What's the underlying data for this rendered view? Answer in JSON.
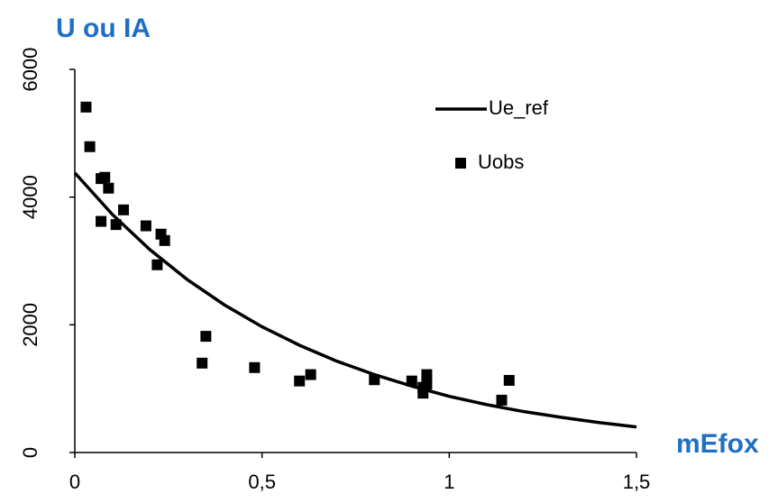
{
  "chart_data": {
    "type": "scatter",
    "title": "U ou IA",
    "x_label": "mEfox",
    "xlim": [
      0,
      1.5
    ],
    "ylim": [
      0,
      6000
    ],
    "xticks": [
      0,
      {
        "value": 0.5,
        "label": "0,5"
      },
      1,
      {
        "value": 1.5,
        "label": "1,5"
      }
    ],
    "yticks": [
      0,
      2000,
      4000,
      6000
    ],
    "series": [
      {
        "name": "Ue_ref",
        "color": "#000000",
        "mode": "line",
        "x": [
          0,
          0.1,
          0.2,
          0.3,
          0.4,
          0.5,
          0.6,
          0.7,
          0.8,
          0.9,
          1.0,
          1.1,
          1.2,
          1.3,
          1.4,
          1.5
        ],
        "values": [
          4380,
          3730,
          3180,
          2710,
          2310,
          1970,
          1680,
          1430,
          1220,
          1040,
          880,
          750,
          640,
          550,
          470,
          400
        ]
      },
      {
        "name": "Uobs",
        "color": "#000000",
        "mode": "markers",
        "x": [
          0.03,
          0.04,
          0.07,
          0.08,
          0.09,
          0.07,
          0.13,
          0.11,
          0.19,
          0.23,
          0.24,
          0.22,
          0.35,
          0.34,
          0.48,
          0.6,
          0.63,
          0.8,
          0.9,
          0.93,
          0.93,
          0.94,
          0.94,
          1.14,
          1.16
        ],
        "values": [
          5410,
          4790,
          4290,
          4310,
          4140,
          3620,
          3800,
          3570,
          3550,
          3420,
          3320,
          2940,
          1820,
          1400,
          1330,
          1120,
          1220,
          1140,
          1120,
          1020,
          930,
          1070,
          1220,
          820,
          1130
        ]
      }
    ]
  }
}
